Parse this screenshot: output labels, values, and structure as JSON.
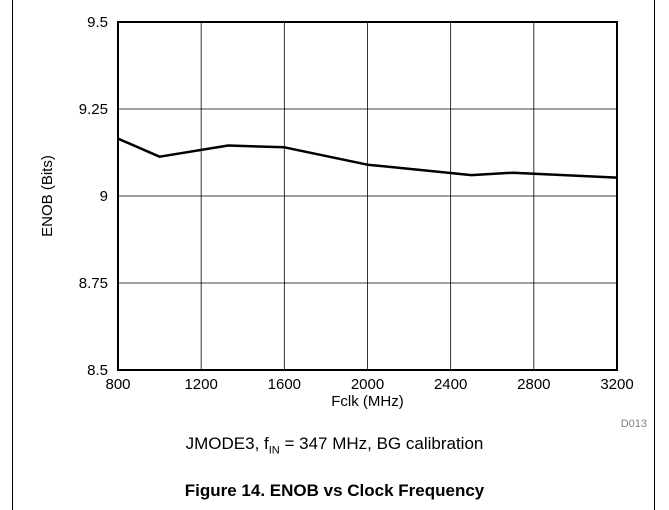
{
  "chart_data": {
    "type": "line",
    "xlabel": "Fclk (MHz)",
    "ylabel": "ENOB (Bits)",
    "xlim": [
      800,
      3200
    ],
    "ylim": [
      8.5,
      9.5
    ],
    "xticks": [
      800,
      1200,
      1600,
      2000,
      2400,
      2800,
      3200
    ],
    "yticks": [
      8.5,
      8.75,
      9,
      9.25,
      9.5
    ],
    "ytick_labels": [
      "8.5",
      "8.75",
      "9",
      "9.25",
      "9.5"
    ],
    "grid": true,
    "series": [
      {
        "x": [
          800,
          1000,
          1330,
          1600,
          2000,
          2500,
          2700,
          3200
        ],
        "y": [
          9.165,
          9.113,
          9.145,
          9.14,
          9.09,
          9.06,
          9.067,
          9.053
        ]
      }
    ],
    "code": "D013"
  },
  "subtitle": {
    "prefix": "JMODE3, f",
    "sub": "IN",
    "suffix": " = 347 MHz, BG calibration"
  },
  "caption": "Figure 14. ENOB vs Clock Frequency"
}
